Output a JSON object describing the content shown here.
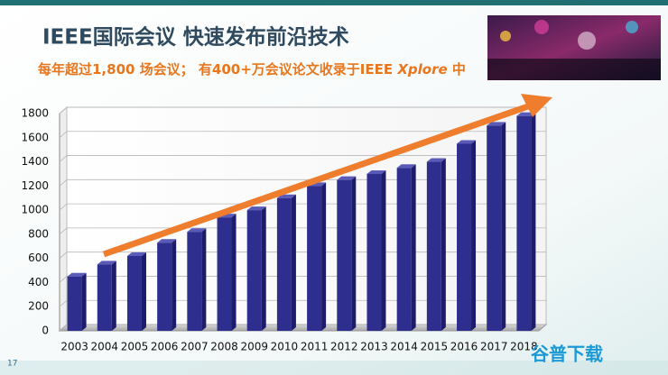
{
  "title": "IEEE国际会议 快速发布前沿技术",
  "subtitle": [
    "每年超过1,800 场会议； 有400+万会议论文收录于IEEE ",
    "Xplore",
    " 中"
  ],
  "chart_data": {
    "type": "bar",
    "categories": [
      "2003",
      "2004",
      "2005",
      "2006",
      "2007",
      "2008",
      "2009",
      "2010",
      "2011",
      "2012",
      "2013",
      "2014",
      "2015",
      "2016",
      "2017",
      "2018"
    ],
    "values": [
      450,
      550,
      620,
      730,
      820,
      940,
      1000,
      1100,
      1200,
      1250,
      1300,
      1350,
      1400,
      1550,
      1700,
      1780
    ],
    "color": "#2e2e8f",
    "ylim": [
      0,
      1800
    ],
    "yticks": [
      0,
      200,
      400,
      600,
      800,
      1000,
      1200,
      1400,
      1600,
      1800
    ],
    "grid": true,
    "trend_arrow_color": "#ef7d2e"
  },
  "page_number": "17",
  "watermark": "谷普下载"
}
